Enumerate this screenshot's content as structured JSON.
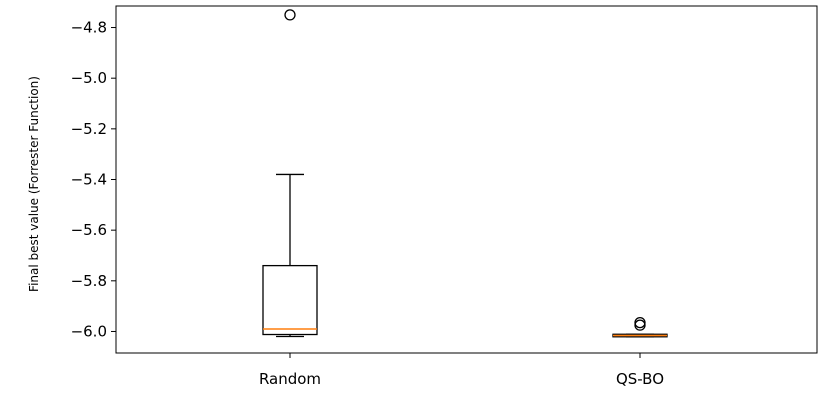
{
  "chart_data": {
    "type": "box",
    "title": "",
    "xlabel": "",
    "ylabel": "Final best value (Forrester Function)",
    "ylim": [
      -6.085,
      -4.715
    ],
    "yticks": [
      -4.8,
      -5.0,
      -5.2,
      -5.4,
      -5.6,
      -5.8,
      -6.0
    ],
    "ytick_labels": [
      "−4.8",
      "−5.0",
      "−5.2",
      "−5.4",
      "−5.6",
      "−5.8",
      "−6.0"
    ],
    "grid": false,
    "categories": [
      "Random",
      "QS-BO"
    ],
    "boxes": [
      {
        "name": "Random",
        "whisker_low": -6.02,
        "q1": -6.012,
        "median": -5.99,
        "q3": -5.74,
        "whisker_high": -5.38,
        "outliers": [
          -4.75
        ]
      },
      {
        "name": "QS-BO",
        "whisker_low": -6.021,
        "q1": -6.021,
        "median": -6.016,
        "q3": -6.011,
        "whisker_high": -6.011,
        "outliers": [
          -5.965,
          -5.975
        ]
      }
    ],
    "colors": {
      "box": "#000000",
      "median": "#ff7f0e",
      "outlier": "#000000"
    }
  }
}
